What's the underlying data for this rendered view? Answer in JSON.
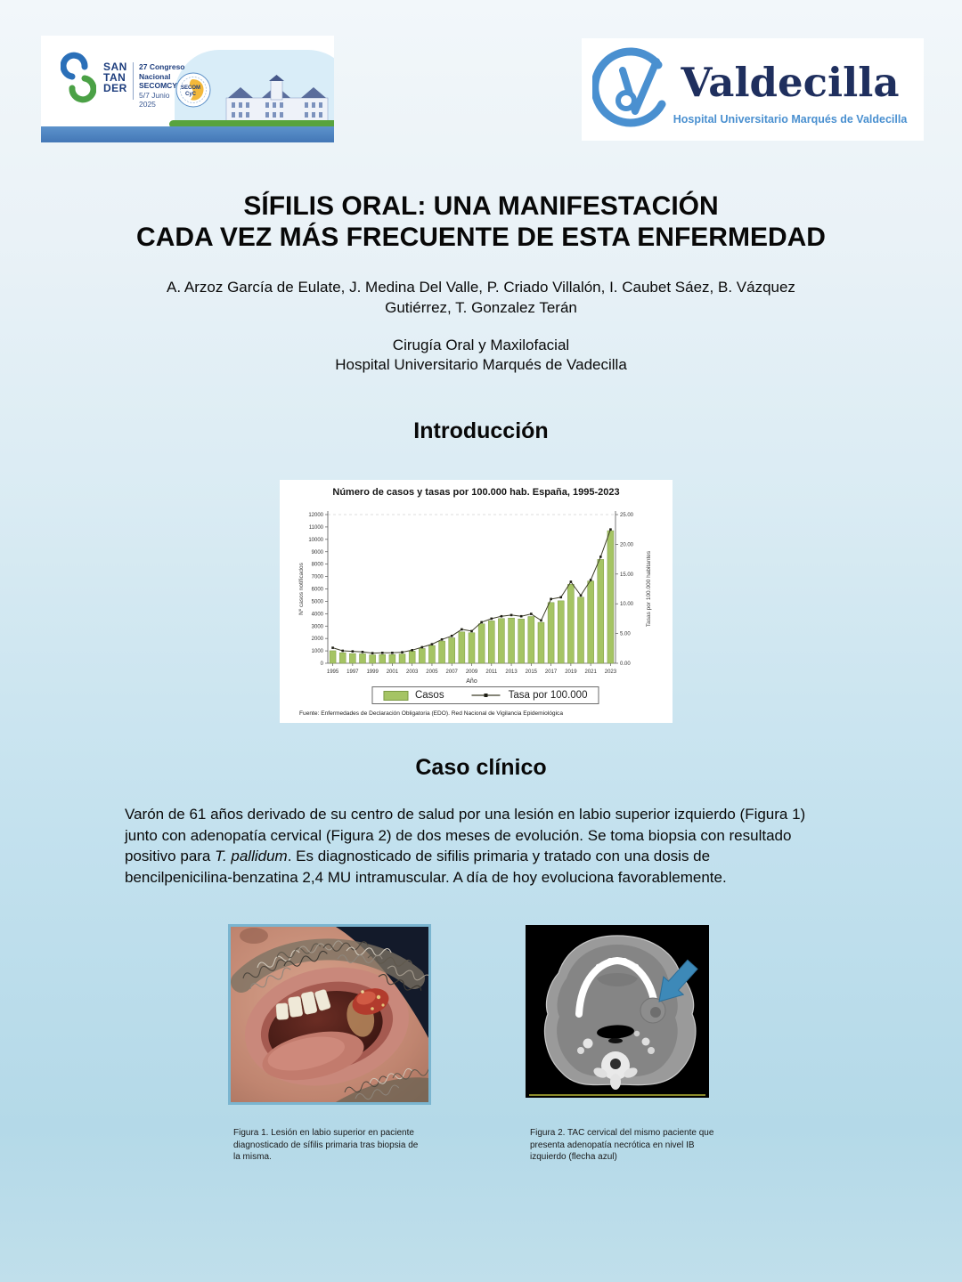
{
  "header": {
    "congress_logo": {
      "city_lines": [
        "SAN",
        "TAN",
        "DER"
      ],
      "event_line1": "27 Congreso Nacional",
      "event_line2": "SECOMCYC",
      "event_line3": "5/7 Junio",
      "event_line4": "2025",
      "badge_line1": "SECOM",
      "badge_line2": "CyC"
    },
    "hospital_logo": {
      "name": "Valdecilla",
      "subtitle": "Hospital Universitario Marqués de Valdecilla",
      "navy": "#1f2f5e",
      "blue": "#4a90d0"
    }
  },
  "title": {
    "line1": "SÍFILIS ORAL: UNA MANIFESTACIÓN",
    "line2": "CADA VEZ MÁS FRECUENTE DE ESTA ENFERMEDAD"
  },
  "authors": "A. Arzoz García de Eulate, J. Medina Del Valle, P. Criado Villalón, I. Caubet Sáez, B. Vázquez Gutiérrez, T. Gonzalez Terán",
  "affiliation": {
    "department": "Cirugía Oral y Maxilofacial",
    "hospital": "Hospital Universitario Marqués de Vadecilla"
  },
  "sections": {
    "introduction_heading": "Introducción",
    "case_heading": "Caso clínico"
  },
  "case_text": {
    "before_italic": "Varón de 61 años derivado de su centro de salud por una lesión en labio superior izquierdo (Figura 1) junto con adenopatía cervical (Figura 2) de dos meses de evolución. Se toma biopsia con resultado positivo para ",
    "italic": "T. pallidum",
    "after_italic": ". Es diagnosticado de sifilis primaria y tratado con una dosis de bencilpenicilina-benzatina 2,4 MU intramuscular. A día de hoy evoluciona favorablemente."
  },
  "figures": {
    "fig1_caption": "Figura 1. Lesión en labio superior en  paciente diagnosticado de sífilis primaria  tras biopsia de la misma.",
    "fig2_caption": "Figura 2. TAC cervical del mismo paciente que presenta adenopatía necrótica en nivel IB izquierdo (flecha azul)"
  },
  "chart_data": {
    "type": "bar",
    "title": "Número de casos y tasas por 100.000 hab.  España, 1995-2023",
    "xlabel": "Año",
    "ylabel_left": "Nº casos notificados",
    "ylabel_right": "Tasas por 100.000 habitantes",
    "source": "Fuente: Enfermedades de Declaración Obligatoria (EDO). Red Nacional de Vigilancia Epidemiológica",
    "years": [
      1995,
      1996,
      1997,
      1998,
      1999,
      2000,
      2001,
      2002,
      2003,
      2004,
      2005,
      2006,
      2007,
      2008,
      2009,
      2010,
      2011,
      2012,
      2013,
      2014,
      2015,
      2016,
      2017,
      2018,
      2019,
      2020,
      2021,
      2022,
      2023
    ],
    "series": [
      {
        "name": "Casos",
        "type": "bar",
        "axis": "left",
        "values": [
          1010,
          850,
          780,
          760,
          680,
          700,
          700,
          750,
          980,
          1190,
          1430,
          1790,
          2050,
          2530,
          2460,
          3180,
          3420,
          3610,
          3650,
          3570,
          3770,
          3300,
          4900,
          5040,
          6370,
          5330,
          6640,
          8380,
          10700
        ]
      },
      {
        "name": "Tasa por 100.000",
        "type": "line",
        "axis": "right",
        "values": [
          2.6,
          2.1,
          2.0,
          1.9,
          1.7,
          1.75,
          1.75,
          1.85,
          2.2,
          2.7,
          3.2,
          4.0,
          4.6,
          5.7,
          5.4,
          6.9,
          7.5,
          7.9,
          8.1,
          7.9,
          8.3,
          7.2,
          10.8,
          11.1,
          13.7,
          11.4,
          14.0,
          17.9,
          22.5
        ]
      }
    ],
    "ylim_left": [
      0,
      12000
    ],
    "ylim_right": [
      0,
      25
    ],
    "left_ticks": [
      0,
      1000,
      2000,
      3000,
      4000,
      5000,
      6000,
      7000,
      8000,
      9000,
      10000,
      11000,
      12000
    ],
    "right_ticks": [
      "0.00",
      "5.00",
      "10.00",
      "15.00",
      "20.00",
      "25.00"
    ],
    "x_ticks": [
      1995,
      1997,
      1999,
      2001,
      2003,
      2005,
      2007,
      2009,
      2011,
      2013,
      2015,
      2017,
      2019,
      2021,
      2023
    ],
    "grid": "dashed top line only",
    "legend_position": "bottom-center boxed",
    "colors": {
      "bar": "#a5c464",
      "bar_border": "#7c9a44",
      "line": "#3c3c28",
      "marker": "#1e1e14"
    }
  }
}
